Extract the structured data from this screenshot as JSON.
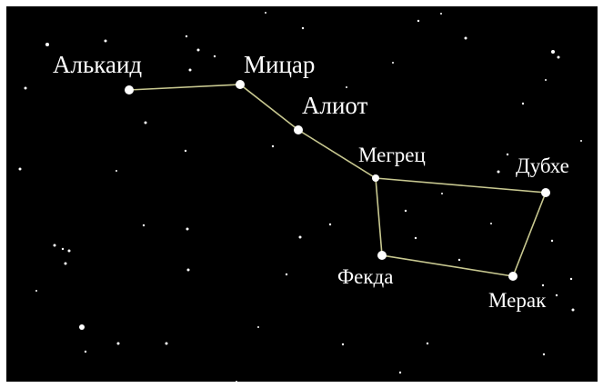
{
  "nodes": [
    {
      "label": "Алькаид"
    },
    {
      "label": "Мицар"
    },
    {
      "label": "Алиот"
    },
    {
      "label": "Мегрец"
    },
    {
      "label": "Дубхе"
    },
    {
      "label": "Мерак"
    },
    {
      "label": "Фекда"
    }
  ]
}
